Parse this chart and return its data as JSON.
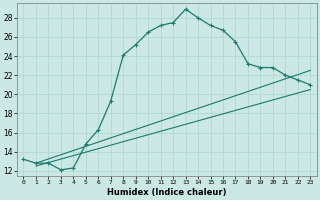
{
  "title": "",
  "xlabel": "Humidex (Indice chaleur)",
  "bg_color": "#cce8e4",
  "grid_color": "#b0d8d4",
  "line_color": "#1a7a6e",
  "xlim": [
    -0.5,
    23.5
  ],
  "ylim": [
    11.5,
    29.5
  ],
  "xticks": [
    0,
    1,
    2,
    3,
    4,
    5,
    6,
    7,
    8,
    9,
    10,
    11,
    12,
    13,
    14,
    15,
    16,
    17,
    18,
    19,
    20,
    21,
    22,
    23
  ],
  "yticks": [
    12,
    14,
    16,
    18,
    20,
    22,
    24,
    26,
    28
  ],
  "curve1_x": [
    0,
    1,
    2,
    3,
    4,
    5,
    6,
    7,
    8,
    9,
    10,
    11,
    12,
    13,
    14,
    15,
    16,
    17,
    18,
    19,
    20,
    21,
    22,
    23
  ],
  "curve1_y": [
    13.2,
    12.8,
    12.8,
    12.1,
    12.3,
    14.8,
    16.3,
    19.3,
    24.1,
    25.2,
    26.5,
    27.2,
    27.5,
    28.9,
    28.0,
    27.2,
    26.7,
    25.5,
    23.2,
    22.8,
    22.8,
    22.0,
    21.5,
    21.0
  ],
  "curve2_x": [
    1,
    23
  ],
  "curve2_y": [
    12.8,
    22.5
  ],
  "curve3_x": [
    1,
    23
  ],
  "curve3_y": [
    12.5,
    20.5
  ],
  "figsize": [
    3.2,
    2.0
  ],
  "dpi": 100
}
